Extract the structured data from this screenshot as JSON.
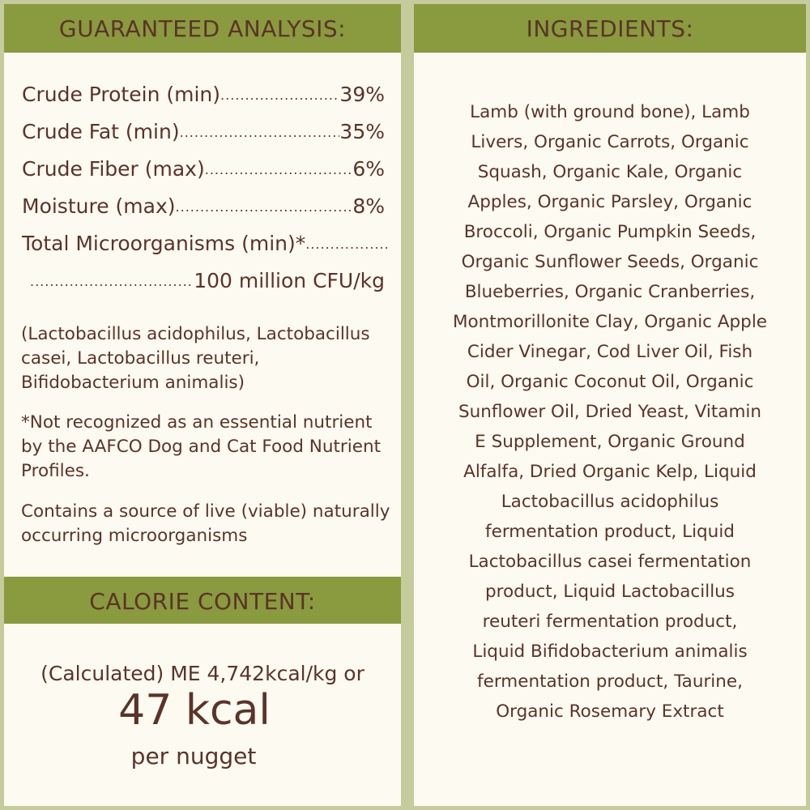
{
  "guaranteed_analysis": {
    "title": "GUARANTEED ANALYSIS:",
    "rows": [
      {
        "label": "Crude Protein (min)",
        "value": "39%"
      },
      {
        "label": "Crude Fat (min)",
        "value": "35%"
      },
      {
        "label": "Crude Fiber (max)",
        "value": "6%"
      },
      {
        "label": "Moisture (max)",
        "value": "8%"
      },
      {
        "label": "Total Microorganisms (min)*",
        "value": ""
      },
      {
        "label": "",
        "value": "100 million CFU/kg"
      }
    ],
    "strains": "(Lactobacillus acidophilus, Lactobacillus casei, Lactobacillus reuteri, Bifidobacterium animalis)",
    "footnote": "*Not recognized as an essential nutrient by the AAFCO Dog and Cat Food Nutrient Profiles.",
    "live_note": "Contains a source of live (viable) naturally occurring microorganisms"
  },
  "calorie_content": {
    "title": "CALORIE CONTENT:",
    "calculated": "(Calculated) ME 4,742kcal/kg or",
    "big": "47 kcal",
    "per": "per nugget"
  },
  "ingredients": {
    "title": "INGREDIENTS:",
    "lines": [
      "Lamb (with ground bone), Lamb",
      "Livers, Organic Carrots, Organic",
      "Squash, Organic Kale, Organic",
      "Apples, Organic Parsley, Organic",
      "Broccoli, Organic Pumpkin Seeds,",
      "Organic Sunflower Seeds, Organic",
      "Blueberries, Organic Cranberries,",
      "Montmorillonite Clay, Organic Apple",
      "Cider Vinegar, Cod Liver Oil,  Fish",
      "Oil, Organic Coconut Oil, Organic",
      "Sunflower Oil, Dried Yeast, Vitamin",
      "E Supplement, Organic Ground",
      "Alfalfa, Dried Organic Kelp, Liquid",
      "Lactobacillus acidophilus",
      "fermentation product, Liquid",
      "Lactobacillus casei fermentation",
      "product, Liquid Lactobacillus",
      "reuteri fermentation product,",
      "Liquid Bifidobacterium animalis",
      "fermentation product, Taurine,",
      "Organic Rosemary Extract"
    ]
  },
  "colors": {
    "background": "#c5cb9d",
    "panel": "#fdfaf1",
    "header": "#8a9a3f",
    "text": "#5b3328"
  }
}
